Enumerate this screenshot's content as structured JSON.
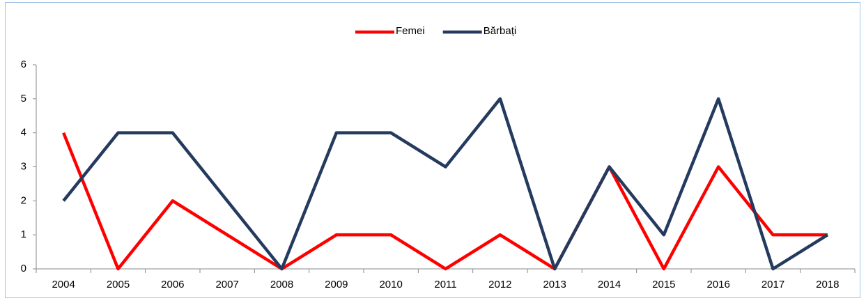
{
  "chart_data": {
    "type": "line",
    "categories": [
      "2004",
      "2005",
      "2006",
      "2007",
      "2008",
      "2009",
      "2010",
      "2011",
      "2012",
      "2013",
      "2014",
      "2015",
      "2016",
      "2017",
      "2018"
    ],
    "series": [
      {
        "name": "Femei",
        "color": "#ff0000",
        "values": [
          4,
          0,
          2,
          1,
          0,
          1,
          1,
          0,
          1,
          0,
          3,
          0,
          3,
          1,
          1
        ]
      },
      {
        "name": "Bărbați",
        "color": "#243a5e",
        "values": [
          2,
          4,
          4,
          2,
          0,
          4,
          4,
          3,
          5,
          0,
          3,
          1,
          5,
          0,
          1
        ]
      }
    ],
    "ylim": [
      0,
      6
    ],
    "yticks": [
      0,
      1,
      2,
      3,
      4,
      5,
      6
    ],
    "legend": "top"
  }
}
